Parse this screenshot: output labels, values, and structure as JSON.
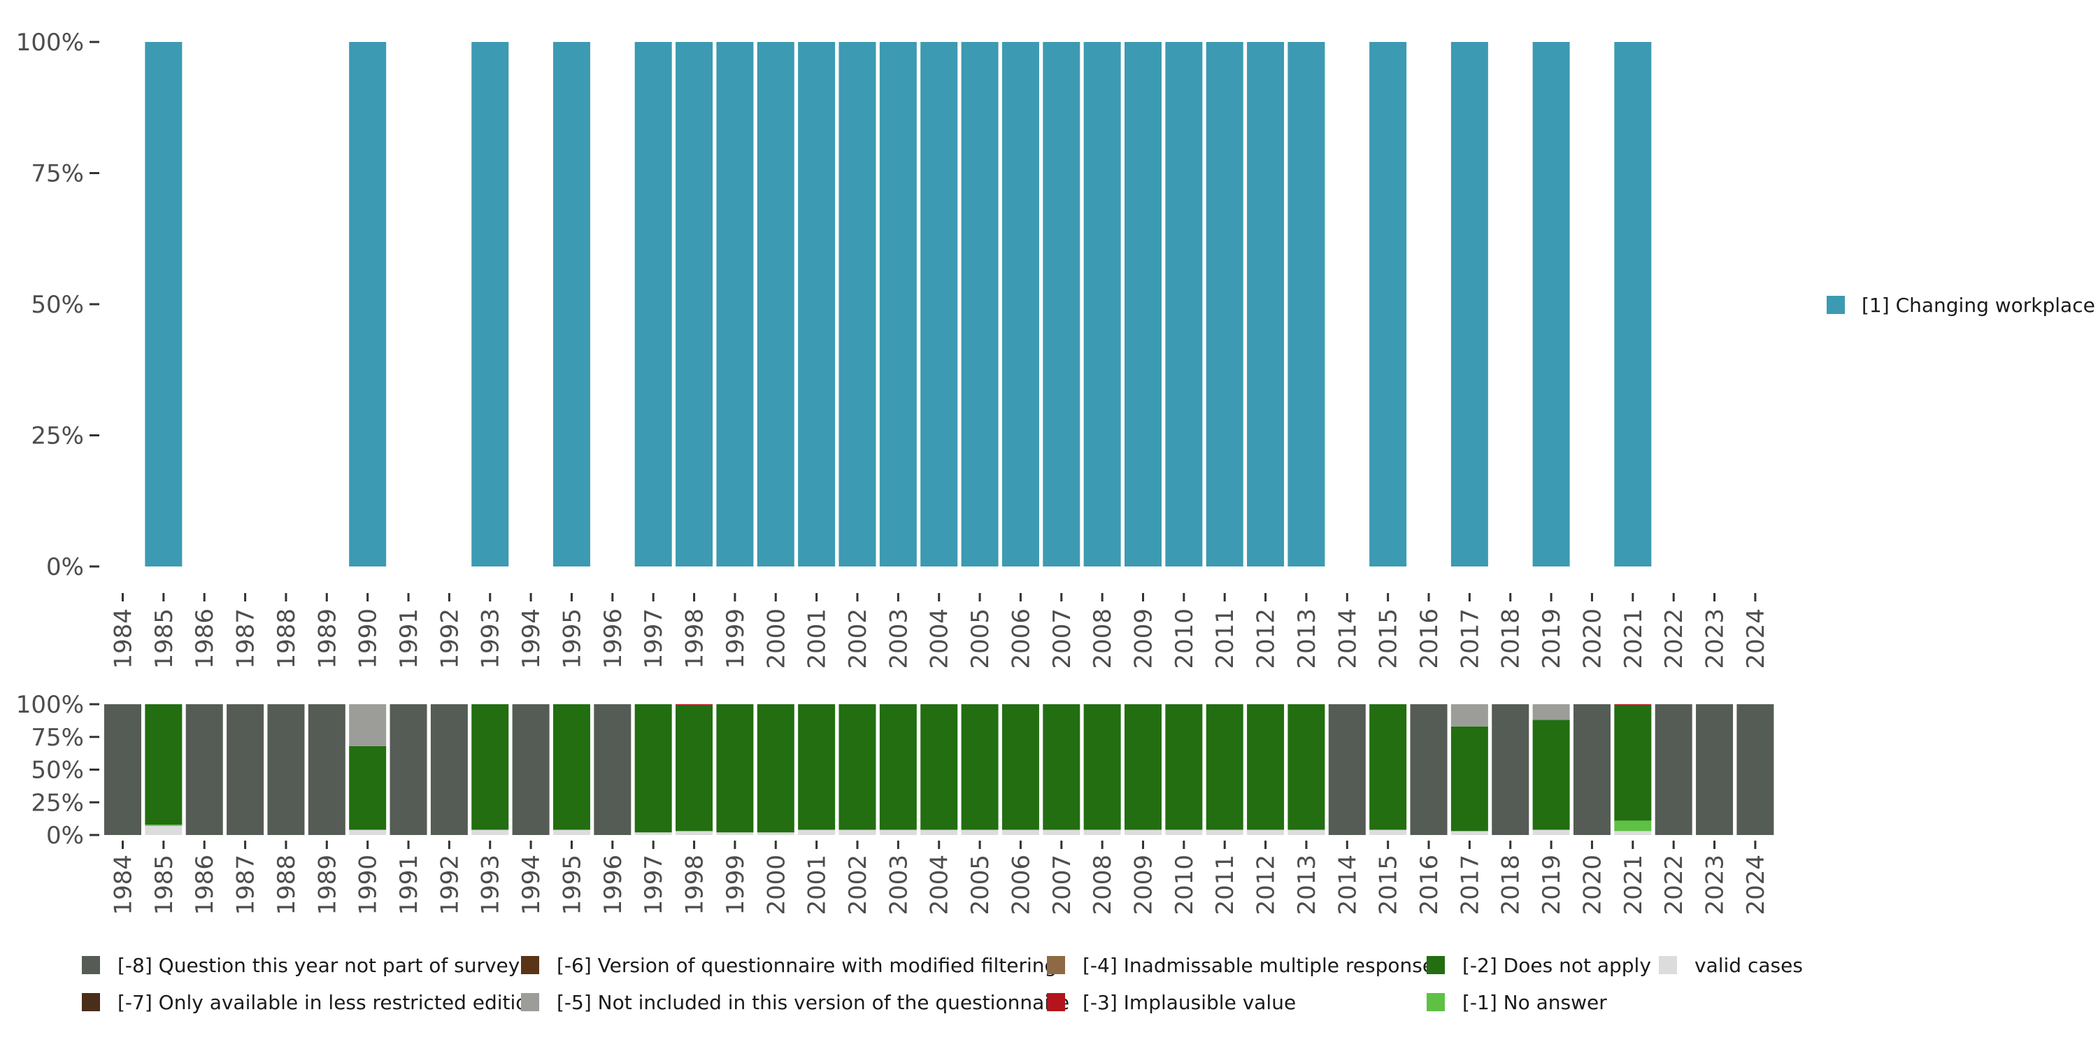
{
  "chart_data": [
    {
      "type": "bar",
      "stacked": true,
      "title": "",
      "xlabel": "",
      "ylabel": "",
      "ylim": [
        0,
        100
      ],
      "y_ticks": [
        "0%",
        "25%",
        "50%",
        "75%",
        "100%"
      ],
      "y_tick_values": [
        0,
        25,
        50,
        75,
        100
      ],
      "categories": [
        "1984",
        "1985",
        "1986",
        "1987",
        "1988",
        "1989",
        "1990",
        "1991",
        "1992",
        "1993",
        "1994",
        "1995",
        "1996",
        "1997",
        "1998",
        "1999",
        "2000",
        "2001",
        "2002",
        "2003",
        "2004",
        "2005",
        "2006",
        "2007",
        "2008",
        "2009",
        "2010",
        "2011",
        "2012",
        "2013",
        "2014",
        "2015",
        "2016",
        "2017",
        "2018",
        "2019",
        "2020",
        "2021",
        "2022",
        "2023",
        "2024"
      ],
      "series": [
        {
          "name": "[1] Changing workplace",
          "color": "#3c9ab2",
          "values": [
            0,
            100,
            0,
            0,
            0,
            0,
            100,
            0,
            0,
            100,
            0,
            100,
            0,
            100,
            100,
            100,
            100,
            100,
            100,
            100,
            100,
            100,
            100,
            100,
            100,
            100,
            100,
            100,
            100,
            100,
            0,
            100,
            0,
            100,
            0,
            100,
            0,
            100,
            0,
            0,
            0
          ]
        }
      ],
      "legend": {
        "position": "right",
        "entries": [
          "[1] Changing workplace"
        ]
      }
    },
    {
      "type": "bar",
      "stacked": true,
      "title": "",
      "xlabel": "",
      "ylabel": "",
      "ylim": [
        0,
        100
      ],
      "y_ticks": [
        "0%",
        "25%",
        "50%",
        "75%",
        "100%"
      ],
      "y_tick_values": [
        0,
        25,
        50,
        75,
        100
      ],
      "categories": [
        "1984",
        "1985",
        "1986",
        "1987",
        "1988",
        "1989",
        "1990",
        "1991",
        "1992",
        "1993",
        "1994",
        "1995",
        "1996",
        "1997",
        "1998",
        "1999",
        "2000",
        "2001",
        "2002",
        "2003",
        "2004",
        "2005",
        "2006",
        "2007",
        "2008",
        "2009",
        "2010",
        "2011",
        "2012",
        "2013",
        "2014",
        "2015",
        "2016",
        "2017",
        "2018",
        "2019",
        "2020",
        "2021",
        "2022",
        "2023",
        "2024"
      ],
      "series": [
        {
          "name": "valid cases",
          "color": "#dcdcdc",
          "values": [
            0,
            7,
            0,
            0,
            0,
            0,
            4,
            0,
            0,
            4,
            0,
            4,
            0,
            2,
            3,
            2,
            2,
            4,
            4,
            4,
            4,
            4,
            4,
            4,
            4,
            4,
            4,
            4,
            4,
            4,
            0,
            4,
            0,
            3,
            0,
            4,
            0,
            3,
            0,
            0,
            0
          ]
        },
        {
          "name": "[-1] No answer",
          "color": "#5ec144",
          "values": [
            0,
            1,
            0,
            0,
            0,
            0,
            0,
            0,
            0,
            0,
            0,
            0,
            0,
            0,
            0,
            0,
            0,
            0,
            0,
            0,
            0,
            0,
            0,
            0,
            0,
            0,
            0,
            0,
            0,
            0,
            0,
            0,
            0,
            0,
            0,
            0,
            0,
            8,
            0,
            0,
            0
          ]
        },
        {
          "name": "[-2] Does not apply",
          "color": "#226e11",
          "values": [
            0,
            92,
            0,
            0,
            0,
            0,
            64,
            0,
            0,
            96,
            0,
            96,
            0,
            98,
            96,
            98,
            98,
            96,
            96,
            96,
            96,
            96,
            96,
            96,
            96,
            96,
            96,
            96,
            96,
            96,
            0,
            96,
            0,
            80,
            0,
            84,
            0,
            88,
            0,
            0,
            0
          ]
        },
        {
          "name": "[-3] Implausible value",
          "color": "#b4141c",
          "values": [
            0,
            0,
            0,
            0,
            0,
            0,
            0,
            0,
            0,
            0,
            0,
            0,
            0,
            0,
            1,
            0,
            0,
            0,
            0,
            0,
            0,
            0,
            0,
            0,
            0,
            0,
            0,
            0,
            0,
            0,
            0,
            0,
            0,
            0,
            0,
            0,
            0,
            1,
            0,
            0,
            0
          ]
        },
        {
          "name": "[-4] Inadmissable multiple response",
          "color": "#8d6a45",
          "values": [
            0,
            0,
            0,
            0,
            0,
            0,
            0,
            0,
            0,
            0,
            0,
            0,
            0,
            0,
            0,
            0,
            0,
            0,
            0,
            0,
            0,
            0,
            0,
            0,
            0,
            0,
            0,
            0,
            0,
            0,
            0,
            0,
            0,
            0,
            0,
            0,
            0,
            0,
            0,
            0,
            0
          ]
        },
        {
          "name": "[-5] Not included in this version of the questionnaire",
          "color": "#9c9d98",
          "values": [
            0,
            0,
            0,
            0,
            0,
            0,
            32,
            0,
            0,
            0,
            0,
            0,
            0,
            0,
            0,
            0,
            0,
            0,
            0,
            0,
            0,
            0,
            0,
            0,
            0,
            0,
            0,
            0,
            0,
            0,
            0,
            0,
            0,
            17,
            0,
            12,
            0,
            0,
            0,
            0,
            0
          ]
        },
        {
          "name": "[-6] Version of questionnaire with modified filtering",
          "color": "#5a3418",
          "values": [
            0,
            0,
            0,
            0,
            0,
            0,
            0,
            0,
            0,
            0,
            0,
            0,
            0,
            0,
            0,
            0,
            0,
            0,
            0,
            0,
            0,
            0,
            0,
            0,
            0,
            0,
            0,
            0,
            0,
            0,
            0,
            0,
            0,
            0,
            0,
            0,
            0,
            0,
            0,
            0,
            0
          ]
        },
        {
          "name": "[-7] Only available in less restricted edition",
          "color": "#4a2e19",
          "values": [
            0,
            0,
            0,
            0,
            0,
            0,
            0,
            0,
            0,
            0,
            0,
            0,
            0,
            0,
            0,
            0,
            0,
            0,
            0,
            0,
            0,
            0,
            0,
            0,
            0,
            0,
            0,
            0,
            0,
            0,
            0,
            0,
            0,
            0,
            0,
            0,
            0,
            0,
            0,
            0,
            0
          ]
        },
        {
          "name": "[-8] Question this year not part of survey",
          "color": "#555b55",
          "values": [
            100,
            0,
            100,
            100,
            100,
            100,
            0,
            100,
            100,
            0,
            100,
            0,
            100,
            0,
            0,
            0,
            0,
            0,
            0,
            0,
            0,
            0,
            0,
            0,
            0,
            0,
            0,
            0,
            0,
            0,
            100,
            0,
            100,
            0,
            100,
            0,
            100,
            0,
            100,
            100,
            100
          ]
        }
      ],
      "legend": {
        "position": "bottom",
        "entries": [
          {
            "label": "[-8] Question this year not part of survey",
            "color": "#555b55"
          },
          {
            "label": "[-7] Only available in less restricted edition",
            "color": "#4a2e19"
          },
          {
            "label": "[-6] Version of questionnaire with modified filtering",
            "color": "#5a3418"
          },
          {
            "label": "[-5] Not included in this version of the questionnaire",
            "color": "#9c9d98"
          },
          {
            "label": "[-4] Inadmissable multiple response",
            "color": "#8d6a45"
          },
          {
            "label": "[-3] Implausible value",
            "color": "#b4141c"
          },
          {
            "label": "[-2] Does not apply",
            "color": "#226e11"
          },
          {
            "label": "[-1] No answer",
            "color": "#5ec144"
          },
          {
            "label": "valid cases",
            "color": "#dcdcdc"
          }
        ]
      }
    }
  ]
}
